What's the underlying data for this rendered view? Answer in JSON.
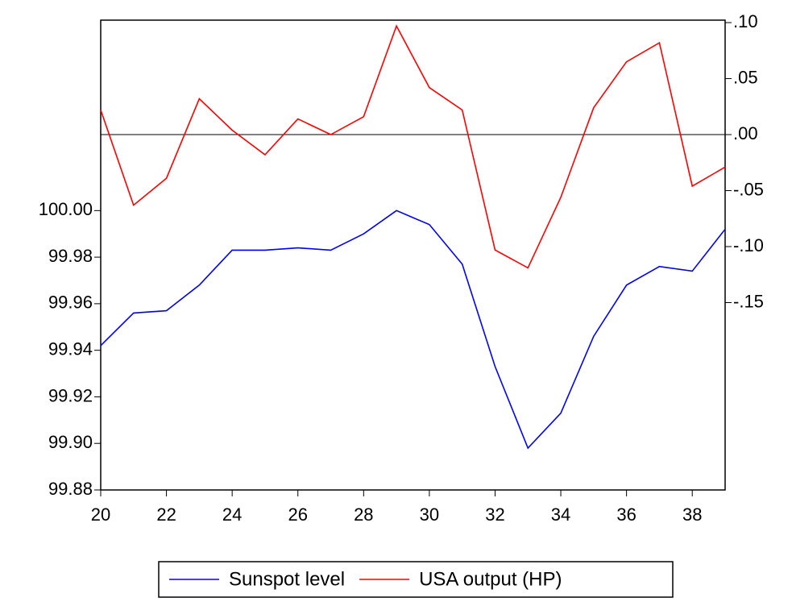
{
  "chart_data": {
    "type": "line",
    "x": [
      20,
      21,
      22,
      23,
      24,
      25,
      26,
      27,
      28,
      29,
      30,
      31,
      32,
      33,
      34,
      35,
      36,
      37,
      38,
      39
    ],
    "xlim": [
      20,
      39
    ],
    "xticks": [
      20,
      22,
      24,
      26,
      28,
      30,
      32,
      34,
      36,
      38
    ],
    "ylim": [
      99.88,
      100.0818
    ],
    "yticks": [
      99.88,
      {
        "value": 99.9,
        "label": "99.90"
      },
      99.92,
      99.94,
      99.96,
      99.98,
      {
        "value": 100,
        "label": "100.00"
      }
    ],
    "y2lim": [
      -0.3173,
      0.1022
    ],
    "y2ticks": [
      {
        "value": 0.1,
        "label": ".10"
      },
      {
        "value": 0.05,
        "label": ".05"
      },
      {
        "value": 0,
        "label": ".00"
      },
      {
        "value": -0.05,
        "label": "-.05"
      },
      {
        "value": -0.1,
        "label": "-.10"
      },
      {
        "value": -0.15,
        "label": "-.15"
      }
    ],
    "zero_line": true,
    "series": [
      {
        "name": "Sunspot level",
        "color": "#0000ff",
        "values": [
          99.942,
          99.956,
          99.957,
          99.968,
          99.983,
          99.983,
          99.984,
          99.983,
          99.99,
          100.0,
          99.994,
          99.977,
          99.933,
          99.898,
          99.913,
          99.946,
          99.968,
          99.976,
          99.974,
          99.992
        ]
      },
      {
        "name": "USA output (HP)",
        "color": "#ff0000",
        "axis": "y2",
        "values": [
          0.022,
          -0.063,
          -0.039,
          0.032,
          0.004,
          -0.018,
          0.014,
          0.0,
          0.016,
          0.097,
          0.042,
          0.022,
          -0.103,
          -0.119,
          -0.056,
          0.024,
          0.065,
          0.082,
          -0.046,
          -0.029
        ]
      }
    ]
  }
}
